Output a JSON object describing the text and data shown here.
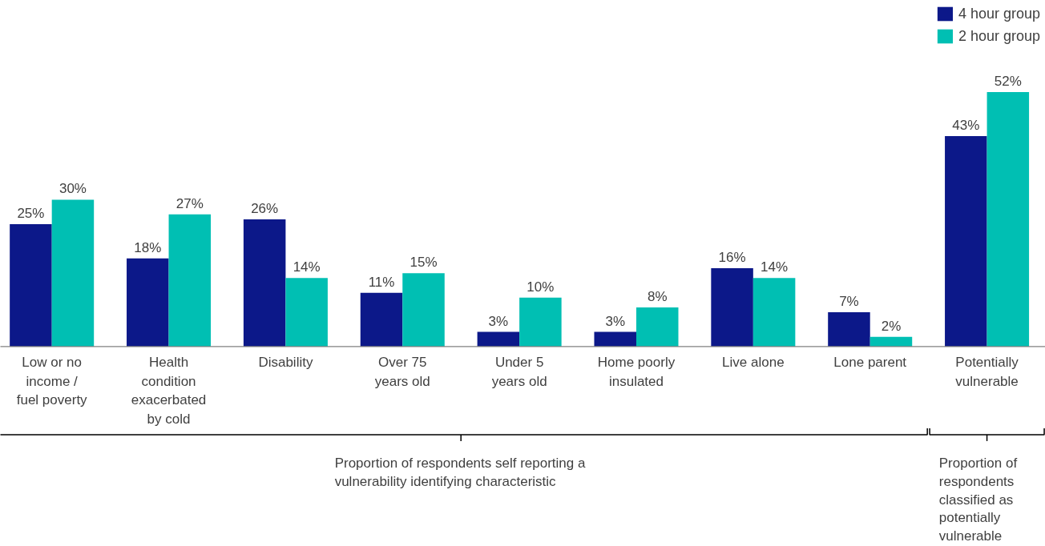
{
  "chart_data": {
    "type": "bar",
    "categories": [
      "Low or no income / fuel poverty",
      "Health condition exacerbated by cold",
      "Disability",
      "Over 75 years old",
      "Under 5 years old",
      "Home poorly insulated",
      "Live alone",
      "Lone parent",
      "Potentially vulnerable"
    ],
    "series": [
      {
        "name": "4 hour group",
        "color": "#0c1889",
        "values": [
          25,
          18,
          26,
          11,
          3,
          3,
          16,
          7,
          43
        ],
        "value_labels": [
          "25%",
          "18%",
          "26%",
          "11%",
          "3%",
          "3%",
          "16%",
          "7%",
          "43%"
        ]
      },
      {
        "name": "2 hour group",
        "color": "#00bfb3",
        "values": [
          30,
          27,
          14,
          15,
          10,
          8,
          14,
          2,
          52
        ],
        "value_labels": [
          "30%",
          "27%",
          "14%",
          "15%",
          "10%",
          "8%",
          "14%",
          "2%",
          "52%"
        ]
      }
    ],
    "legend": "top right",
    "grid": false,
    "annotations": [
      "Proportion of respondents self reporting a vulnerability identifying characteristic",
      "Proportion of respondents classified as potentially vulnerable"
    ]
  }
}
